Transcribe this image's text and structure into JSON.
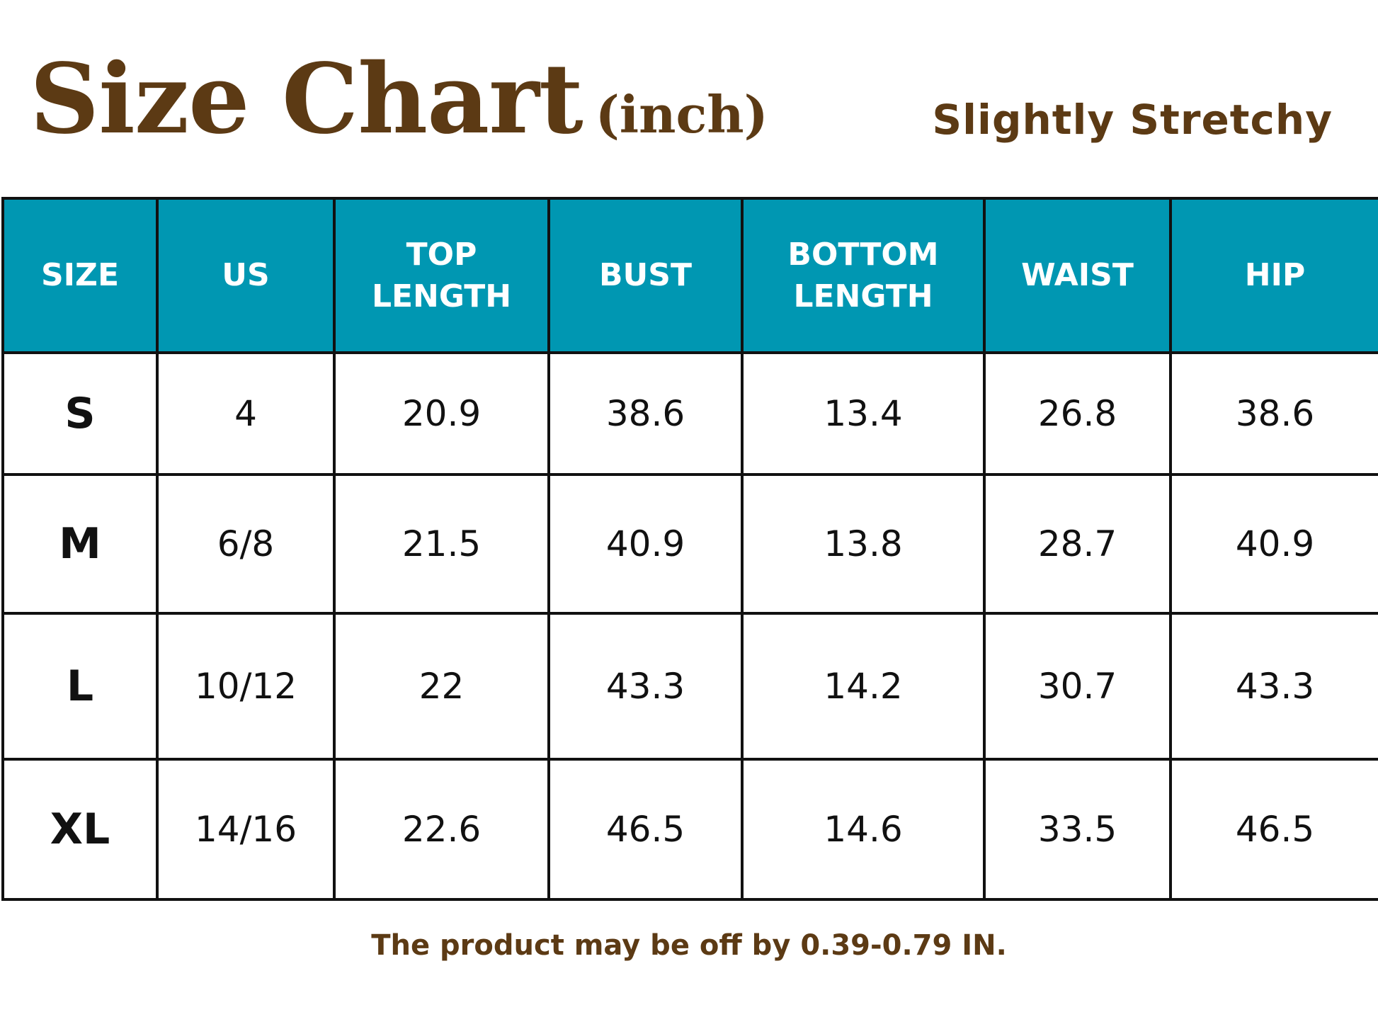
{
  "header": {
    "title": "Size Chart",
    "unit": "(inch)",
    "stretch_label": "Slightly Stretchy"
  },
  "table": {
    "columns": [
      {
        "line1": "SIZE",
        "line2": ""
      },
      {
        "line1": "US",
        "line2": ""
      },
      {
        "line1": "TOP",
        "line2": "LENGTH"
      },
      {
        "line1": "BUST",
        "line2": ""
      },
      {
        "line1": "BOTTOM",
        "line2": "LENGTH"
      },
      {
        "line1": "WAIST",
        "line2": ""
      },
      {
        "line1": "HIP",
        "line2": ""
      }
    ],
    "rows": [
      [
        "S",
        "4",
        "20.9",
        "38.6",
        "13.4",
        "26.8",
        "38.6"
      ],
      [
        "M",
        "6/8",
        "21.5",
        "40.9",
        "13.8",
        "28.7",
        "40.9"
      ],
      [
        "L",
        "10/12",
        "22",
        "43.3",
        "14.2",
        "30.7",
        "43.3"
      ],
      [
        "XL",
        "14/16",
        "22.6",
        "46.5",
        "14.6",
        "33.5",
        "46.5"
      ]
    ]
  },
  "footer": {
    "note": "The product may be off by 0.39-0.79 IN."
  },
  "colors": {
    "brand_brown": "#5c3a14",
    "header_teal": "#0097b2",
    "grid_black": "#111111"
  }
}
